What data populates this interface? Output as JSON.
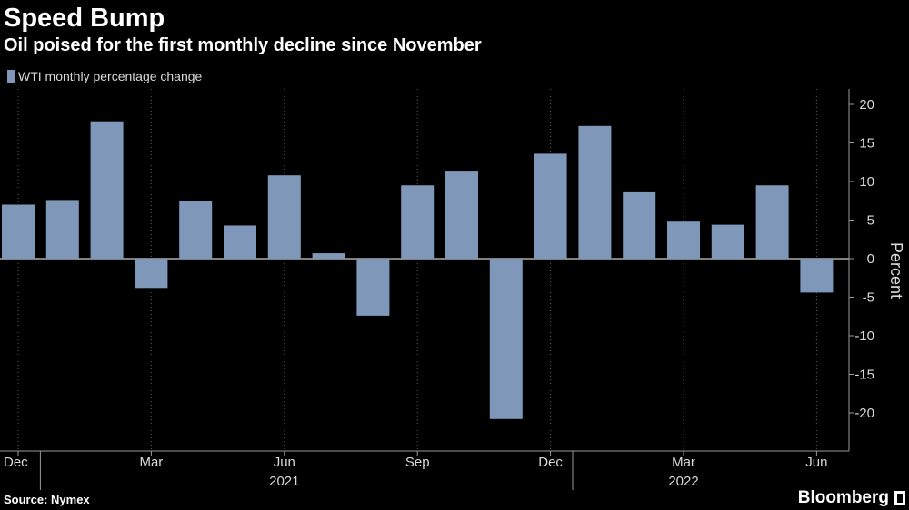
{
  "header": {
    "title": "Speed Bump",
    "subtitle": "Oil poised for the first monthly decline since November"
  },
  "legend": {
    "label": "WTI monthly percentage change",
    "color": "#7f97b8"
  },
  "footer": {
    "source": "Source: Nymex",
    "brand": "Bloomberg"
  },
  "chart_data": {
    "type": "bar",
    "title": "Speed Bump",
    "subtitle": "Oil poised for the first monthly decline since November",
    "xlabel": "",
    "ylabel": "Percent",
    "ylim": [
      -25,
      21
    ],
    "yticks": [
      20,
      15,
      10,
      5,
      0,
      -5,
      -10,
      -15,
      -20
    ],
    "grid": true,
    "legend_position": "top-left",
    "categories": [
      "Dec 2020",
      "Jan 2021",
      "Feb 2021",
      "Mar 2021",
      "Apr 2021",
      "May 2021",
      "Jun 2021",
      "Jul 2021",
      "Aug 2021",
      "Sep 2021",
      "Oct 2021",
      "Nov 2021",
      "Dec 2021",
      "Jan 2022",
      "Feb 2022",
      "Mar 2022",
      "Apr 2022",
      "May 2022",
      "Jun 2022"
    ],
    "x_tick_labels": [
      {
        "index": 0,
        "label": "Dec"
      },
      {
        "index": 3,
        "label": "Mar"
      },
      {
        "index": 6,
        "label": "Jun"
      },
      {
        "index": 9,
        "label": "Sep"
      },
      {
        "index": 12,
        "label": "Dec"
      },
      {
        "index": 15,
        "label": "Mar"
      },
      {
        "index": 18,
        "label": "Jun"
      }
    ],
    "year_labels": [
      {
        "index": 6,
        "label": "2021"
      },
      {
        "index": 15,
        "label": "2022"
      }
    ],
    "series": [
      {
        "name": "WTI monthly percentage change",
        "color": "#7f97b8",
        "values": [
          7.0,
          7.6,
          17.8,
          -3.8,
          7.5,
          4.3,
          10.8,
          0.7,
          -7.4,
          9.5,
          11.4,
          -20.8,
          13.6,
          17.2,
          8.6,
          4.8,
          4.4,
          9.5,
          -4.4
        ]
      }
    ]
  }
}
